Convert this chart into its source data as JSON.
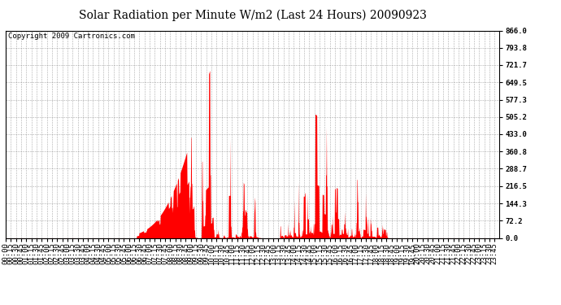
{
  "title": "Solar Radiation per Minute W/m2 (Last 24 Hours) 20090923",
  "copyright": "Copyright 2009 Cartronics.com",
  "y_ticks": [
    0.0,
    72.2,
    144.3,
    216.5,
    288.7,
    360.8,
    433.0,
    505.2,
    577.3,
    649.5,
    721.7,
    793.8,
    866.0
  ],
  "y_max": 866.0,
  "y_min": 0.0,
  "fill_color": "#ff0000",
  "line_color": "#ff0000",
  "bg_color": "#ffffff",
  "grid_color": "#888888",
  "title_fontsize": 10,
  "copyright_fontsize": 6.5,
  "tick_fontsize": 6.5
}
